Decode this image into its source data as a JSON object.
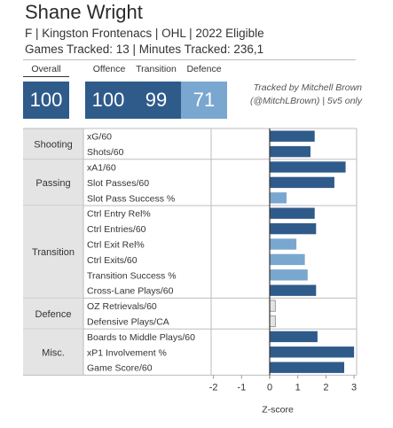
{
  "header": {
    "name": "Shane Wright",
    "line1": "F | Kingston Frontenacs | OHL | 2022 Eligible",
    "line2": "Games Tracked: 13 | Minutes Tracked: 236,1"
  },
  "scores": {
    "overall_label": "Overall",
    "overall": "100",
    "offence_label": "Offence",
    "offence": "100",
    "transition_label": "Transition",
    "transition": "99",
    "defence_label": "Defence",
    "defence": "71"
  },
  "colors": {
    "dark": "#2f5b8b",
    "light": "#7aa7d0",
    "pale": "#e4e4e4"
  },
  "note": {
    "line1": "Tracked by Mitchell Brown",
    "line2": "(@MitchLBrown) | 5v5 only"
  },
  "chart_data": {
    "type": "bar",
    "orientation": "horizontal",
    "xlabel": "Z-score",
    "xlim": [
      -3,
      3
    ],
    "xticks": [
      -2,
      -1,
      0,
      1,
      2,
      3
    ],
    "groups": [
      {
        "name": "Shooting",
        "metrics": [
          {
            "label": "xG/60",
            "value": 1.6
          },
          {
            "label": "Shots/60",
            "value": 1.45
          }
        ]
      },
      {
        "name": "Passing",
        "metrics": [
          {
            "label": "xA1/60",
            "value": 2.7
          },
          {
            "label": "Slot Passes/60",
            "value": 2.3
          },
          {
            "label": "Slot Pass Success %",
            "value": 0.6
          }
        ]
      },
      {
        "name": "Transition",
        "metrics": [
          {
            "label": "Ctrl Entry Rel%",
            "value": 1.6
          },
          {
            "label": "Ctrl Entries/60",
            "value": 1.65
          },
          {
            "label": "Ctrl Exit Rel%",
            "value": 0.95
          },
          {
            "label": "Ctrl Exits/60",
            "value": 1.25
          },
          {
            "label": "Transition Success %",
            "value": 1.35
          },
          {
            "label": "Cross-Lane Plays/60",
            "value": 1.65
          }
        ]
      },
      {
        "name": "Defence",
        "metrics": [
          {
            "label": "OZ Retrievals/60",
            "value": 0.2
          },
          {
            "label": "Defensive Plays/CA",
            "value": 0.2
          }
        ]
      },
      {
        "name": "Misc.",
        "metrics": [
          {
            "label": "Boards to Middle Plays/60",
            "value": 1.7
          },
          {
            "label": "xP1 Involvement %",
            "value": 3.0
          },
          {
            "label": "Game Score/60",
            "value": 2.65
          }
        ]
      }
    ]
  }
}
